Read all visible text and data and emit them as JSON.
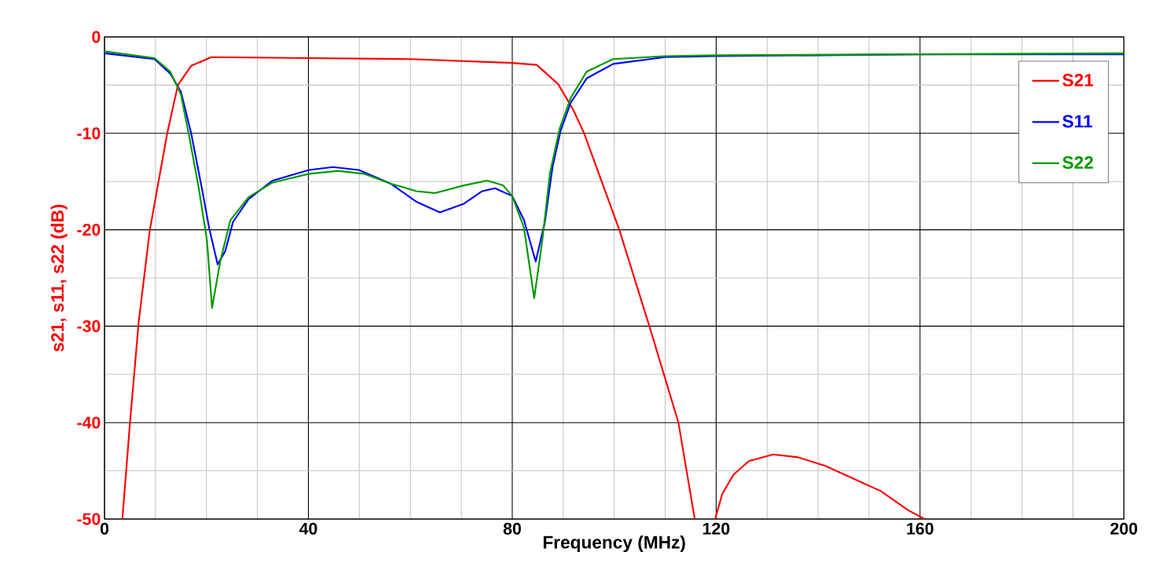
{
  "chart_data": {
    "type": "line",
    "xlabel": "Frequency (MHz)",
    "ylabel": "s21, s11, s22 (dB)",
    "xlim": [
      0,
      200
    ],
    "ylim": [
      -50,
      0
    ],
    "xticks": [
      0,
      40,
      80,
      120,
      160,
      200
    ],
    "yticks": [
      -50,
      -40,
      -30,
      -20,
      -10,
      0
    ],
    "grid": true,
    "legend": "top right",
    "marker": "none",
    "line_style": "solid",
    "series": [
      {
        "name": "S21",
        "color": "#ff0000",
        "x": [
          3.5,
          5.0,
          6.7,
          8.9,
          12.3,
          14.4,
          17,
          21,
          40,
          60,
          75,
          80,
          84.8,
          89,
          92,
          94.1,
          101,
          106.9,
          112.6,
          114.2,
          115.8,
          117.8,
          119.8,
          121.2,
          123.4,
          126.4,
          131.2,
          136.1,
          141.5,
          146.9,
          152.3,
          157.7,
          160.9
        ],
        "values": [
          -50,
          -40,
          -29.6,
          -20,
          -10,
          -5,
          -3,
          -2.1,
          -2.2,
          -2.3,
          -2.6,
          -2.7,
          -2.9,
          -4.9,
          -7.6,
          -10,
          -20,
          -30,
          -40,
          -45,
          -50,
          null,
          -50,
          -47.4,
          -45.4,
          -44.0,
          -43.3,
          -43.6,
          -44.5,
          -45.8,
          -47.1,
          -49.1,
          -50
        ]
      },
      {
        "name": "S11",
        "color": "#0000ff",
        "x": [
          0,
          9.8,
          12.9,
          15,
          17,
          19.1,
          20.6,
          22.2,
          23.7,
          25.2,
          28.3,
          33,
          40.1,
          44.8,
          49.9,
          56.1,
          61.2,
          65.8,
          70.5,
          74.1,
          76.6,
          80,
          82.3,
          84.6,
          86.4,
          87.9,
          89.5,
          91.5,
          94.6,
          99.8,
          110,
          120,
          160,
          200
        ],
        "values": [
          -1.7,
          -2.3,
          -3.8,
          -5.7,
          -10,
          -15.7,
          -20,
          -23.6,
          -22.2,
          -19.2,
          -16.8,
          -14.9,
          -13.8,
          -13.5,
          -13.8,
          -15.2,
          -17.1,
          -18.2,
          -17.3,
          -16,
          -15.7,
          -16.5,
          -19,
          -23.3,
          -19.2,
          -13.5,
          -9.7,
          -6.8,
          -4.3,
          -2.8,
          -2.1,
          -2.0,
          -1.8,
          -1.8
        ]
      },
      {
        "name": "S22",
        "color": "#009900",
        "x": [
          0,
          9.8,
          12.9,
          15,
          16.5,
          18.5,
          20.1,
          21.1,
          22.7,
          24.7,
          28.3,
          33,
          40.1,
          45.8,
          50.9,
          56.1,
          61.2,
          64.8,
          70.5,
          75.1,
          78.2,
          80,
          82.3,
          84.3,
          85.9,
          87.4,
          89.3,
          91.5,
          94.6,
          99.8,
          110,
          120,
          160,
          200
        ],
        "values": [
          -1.5,
          -2.2,
          -3.6,
          -6,
          -10,
          -15.7,
          -21.1,
          -28.1,
          -23.3,
          -19,
          -16.6,
          -15.1,
          -14.2,
          -13.9,
          -14.2,
          -15.2,
          -16,
          -16.2,
          -15.4,
          -14.9,
          -15.4,
          -16.5,
          -19.8,
          -27.1,
          -21.1,
          -14.1,
          -9.5,
          -6.3,
          -3.6,
          -2.3,
          -2.0,
          -1.9,
          -1.8,
          -1.7
        ]
      }
    ]
  }
}
